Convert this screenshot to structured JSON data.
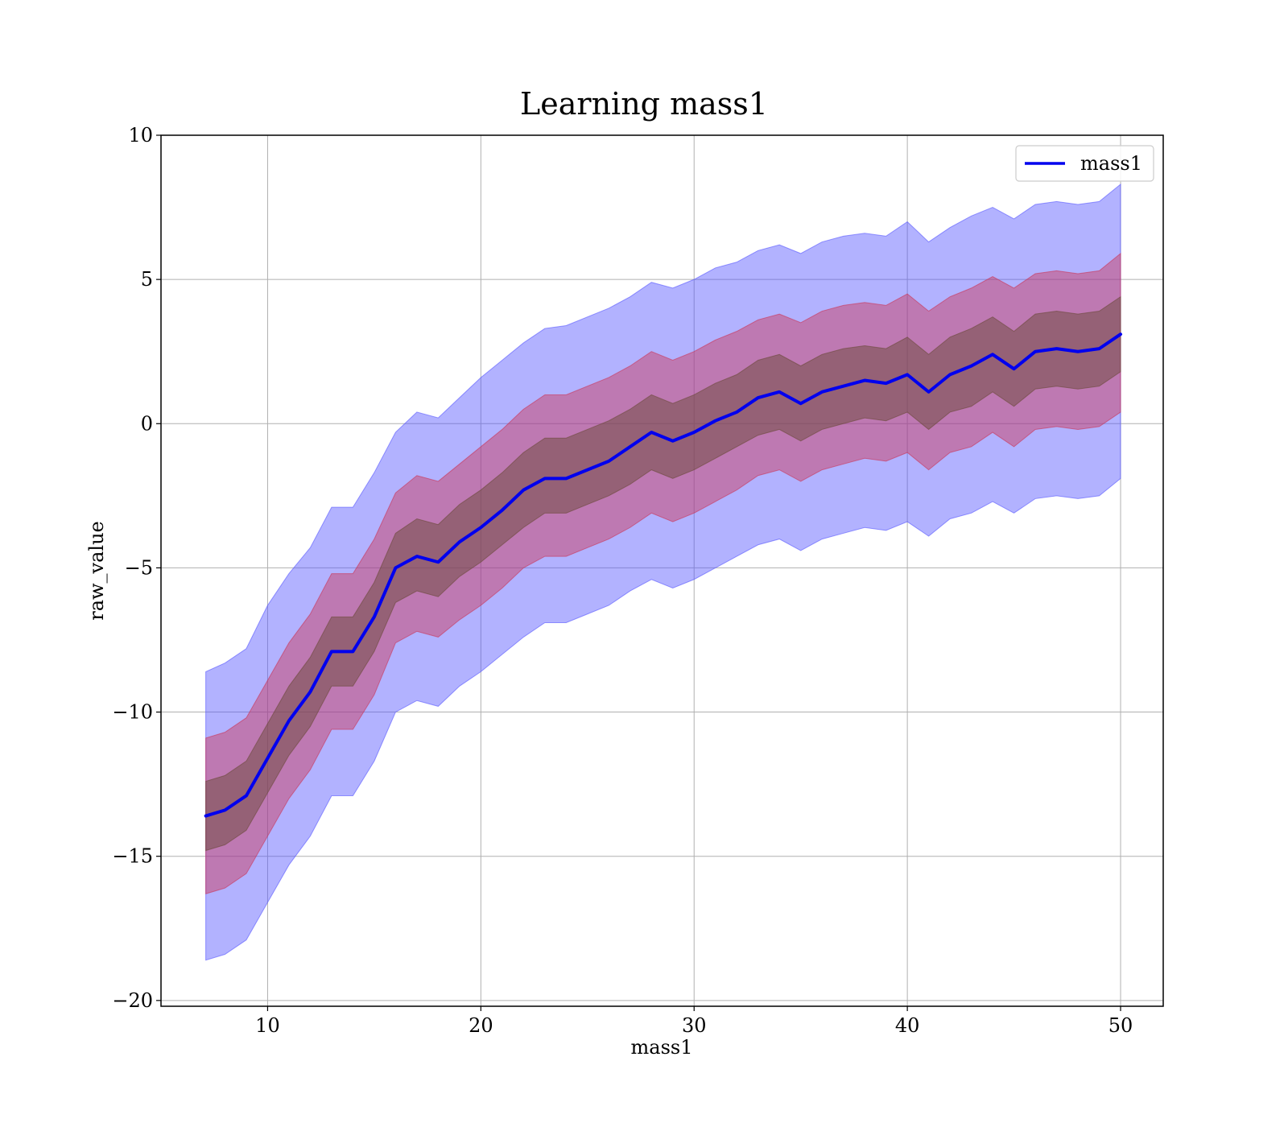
{
  "chart_data": {
    "type": "line",
    "title": "Learning mass1",
    "xlabel": "mass1",
    "ylabel": "raw_value",
    "xlim": [
      5,
      52
    ],
    "ylim": [
      -20.2,
      10
    ],
    "xticks": [
      10,
      20,
      30,
      40,
      50
    ],
    "yticks": [
      -20,
      -15,
      -10,
      -5,
      0,
      5,
      10
    ],
    "grid": true,
    "legend": {
      "position": "top-right",
      "entries": [
        "mass1"
      ]
    },
    "x": [
      7.1,
      8,
      9,
      10,
      11,
      12,
      13,
      14,
      15,
      16,
      17,
      18,
      19,
      20,
      21,
      22,
      23,
      24,
      25,
      26,
      27,
      28,
      29,
      30,
      31,
      32,
      33,
      34,
      35,
      36,
      37,
      38,
      39,
      40,
      41,
      42,
      43,
      44,
      45,
      46,
      47,
      48,
      49,
      50
    ],
    "series": [
      {
        "name": "mass1",
        "color": "#0000ee",
        "values": [
          -13.6,
          -13.4,
          -12.9,
          -11.6,
          -10.3,
          -9.3,
          -7.9,
          -7.9,
          -6.7,
          -5.0,
          -4.6,
          -4.8,
          -4.1,
          -3.6,
          -3.0,
          -2.3,
          -1.9,
          -1.9,
          -1.6,
          -1.3,
          -0.8,
          -0.3,
          -0.6,
          -0.3,
          0.1,
          0.4,
          0.9,
          1.1,
          0.7,
          1.1,
          1.3,
          1.5,
          1.4,
          1.7,
          1.1,
          1.7,
          2.0,
          2.4,
          1.9,
          2.5,
          2.6,
          2.5,
          2.6,
          3.1
        ]
      }
    ],
    "bands": [
      {
        "level": "outer",
        "color": "#5555ff",
        "opacity": 0.45,
        "upper": [
          -8.6,
          -8.3,
          -7.8,
          -6.3,
          -5.2,
          -4.3,
          -2.9,
          -2.9,
          -1.7,
          -0.3,
          0.4,
          0.2,
          0.9,
          1.6,
          2.2,
          2.8,
          3.3,
          3.4,
          3.7,
          4.0,
          4.4,
          4.9,
          4.7,
          5.0,
          5.4,
          5.6,
          6.0,
          6.2,
          5.9,
          6.3,
          6.5,
          6.6,
          6.5,
          7.0,
          6.3,
          6.8,
          7.2,
          7.5,
          7.1,
          7.6,
          7.7,
          7.6,
          7.7,
          8.3
        ],
        "lower": [
          -18.6,
          -18.4,
          -17.9,
          -16.6,
          -15.3,
          -14.3,
          -12.9,
          -12.9,
          -11.7,
          -10.0,
          -9.6,
          -9.8,
          -9.1,
          -8.6,
          -8.0,
          -7.4,
          -6.9,
          -6.9,
          -6.6,
          -6.3,
          -5.8,
          -5.4,
          -5.7,
          -5.4,
          -5.0,
          -4.6,
          -4.2,
          -4.0,
          -4.4,
          -4.0,
          -3.8,
          -3.6,
          -3.7,
          -3.4,
          -3.9,
          -3.3,
          -3.1,
          -2.7,
          -3.1,
          -2.6,
          -2.5,
          -2.6,
          -2.5,
          -1.9
        ]
      },
      {
        "level": "middle",
        "color": "#cc3355",
        "opacity": 0.45,
        "upper": [
          -10.9,
          -10.7,
          -10.2,
          -8.9,
          -7.6,
          -6.6,
          -5.2,
          -5.2,
          -4.0,
          -2.4,
          -1.8,
          -2.0,
          -1.4,
          -0.8,
          -0.2,
          0.5,
          1.0,
          1.0,
          1.3,
          1.6,
          2.0,
          2.5,
          2.2,
          2.5,
          2.9,
          3.2,
          3.6,
          3.8,
          3.5,
          3.9,
          4.1,
          4.2,
          4.1,
          4.5,
          3.9,
          4.4,
          4.7,
          5.1,
          4.7,
          5.2,
          5.3,
          5.2,
          5.3,
          5.9
        ],
        "lower": [
          -16.3,
          -16.1,
          -15.6,
          -14.3,
          -13.0,
          -12.0,
          -10.6,
          -10.6,
          -9.4,
          -7.6,
          -7.2,
          -7.4,
          -6.8,
          -6.3,
          -5.7,
          -5.0,
          -4.6,
          -4.6,
          -4.3,
          -4.0,
          -3.6,
          -3.1,
          -3.4,
          -3.1,
          -2.7,
          -2.3,
          -1.8,
          -1.6,
          -2.0,
          -1.6,
          -1.4,
          -1.2,
          -1.3,
          -1.0,
          -1.6,
          -1.0,
          -0.8,
          -0.3,
          -0.8,
          -0.2,
          -0.1,
          -0.2,
          -0.1,
          0.4
        ]
      },
      {
        "level": "inner",
        "color": "#6b4a3a",
        "opacity": 0.5,
        "upper": [
          -12.4,
          -12.2,
          -11.7,
          -10.4,
          -9.1,
          -8.1,
          -6.7,
          -6.7,
          -5.5,
          -3.8,
          -3.3,
          -3.5,
          -2.8,
          -2.3,
          -1.7,
          -1.0,
          -0.5,
          -0.5,
          -0.2,
          0.1,
          0.5,
          1.0,
          0.7,
          1.0,
          1.4,
          1.7,
          2.2,
          2.4,
          2.0,
          2.4,
          2.6,
          2.7,
          2.6,
          3.0,
          2.4,
          3.0,
          3.3,
          3.7,
          3.2,
          3.8,
          3.9,
          3.8,
          3.9,
          4.4
        ],
        "lower": [
          -14.8,
          -14.6,
          -14.1,
          -12.8,
          -11.5,
          -10.5,
          -9.1,
          -9.1,
          -7.9,
          -6.2,
          -5.8,
          -6.0,
          -5.3,
          -4.8,
          -4.2,
          -3.6,
          -3.1,
          -3.1,
          -2.8,
          -2.5,
          -2.1,
          -1.6,
          -1.9,
          -1.6,
          -1.2,
          -0.8,
          -0.4,
          -0.2,
          -0.6,
          -0.2,
          0.0,
          0.2,
          0.1,
          0.4,
          -0.2,
          0.4,
          0.6,
          1.1,
          0.6,
          1.2,
          1.3,
          1.2,
          1.3,
          1.8
        ]
      }
    ]
  }
}
